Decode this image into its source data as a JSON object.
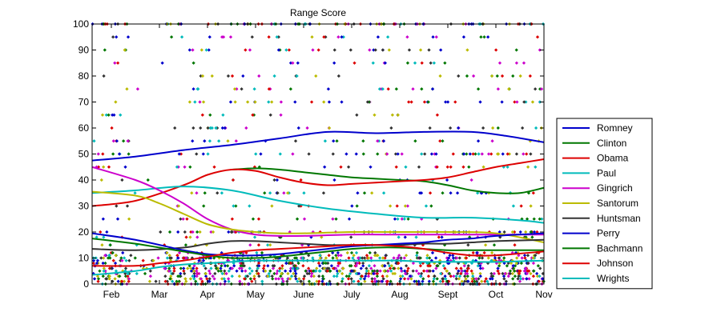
{
  "chart_data": {
    "type": "scatter",
    "title": "Range Score",
    "xlabel": "",
    "ylabel": "",
    "ylim": [
      0,
      100
    ],
    "yticks": [
      0,
      10,
      20,
      30,
      40,
      50,
      60,
      70,
      80,
      90,
      100
    ],
    "xlim": [
      0.6,
      10.0
    ],
    "xticks": [
      {
        "x": 1,
        "label": "Feb"
      },
      {
        "x": 2,
        "label": "Mar"
      },
      {
        "x": 3,
        "label": "Apr"
      },
      {
        "x": 4,
        "label": "May"
      },
      {
        "x": 5,
        "label": "June"
      },
      {
        "x": 6,
        "label": "July"
      },
      {
        "x": 7,
        "label": "Aug"
      },
      {
        "x": 8,
        "label": "Sept"
      },
      {
        "x": 9,
        "label": "Oct"
      },
      {
        "x": 10,
        "label": "Nov"
      }
    ],
    "grid": false,
    "legend_position": "right",
    "series": [
      {
        "name": "Romney",
        "color": "#0000cc",
        "x": [
          0.6,
          1.5,
          2.5,
          3.5,
          4.5,
          5.5,
          6.5,
          7.5,
          8.5,
          9.2,
          10.0
        ],
        "y": [
          47.5,
          49,
          51.5,
          53.5,
          56,
          58.5,
          58,
          58.5,
          58.5,
          57,
          54.5
        ]
      },
      {
        "name": "Clinton",
        "color": "#007700",
        "x": [
          3.5,
          4,
          4.5,
          5,
          5.5,
          6,
          6.5,
          7,
          7.5,
          8,
          8.5,
          9,
          9.5,
          10.0
        ],
        "y": [
          44,
          44.5,
          44,
          43,
          42,
          41,
          40.5,
          40,
          39.5,
          38,
          36,
          35,
          35,
          37
        ]
      },
      {
        "name": "Obama",
        "color": "#dd0000",
        "x": [
          0.6,
          1.5,
          2.5,
          3,
          3.5,
          4,
          4.5,
          5,
          5.5,
          6,
          6.5,
          7,
          7.5,
          8,
          8.5,
          9,
          9.5,
          10.0
        ],
        "y": [
          30,
          32,
          38,
          42,
          44,
          43.5,
          41,
          39,
          38,
          38.5,
          39,
          39.5,
          40,
          41,
          43,
          45,
          46.5,
          48
        ]
      },
      {
        "name": "Paul",
        "color": "#00bbbb",
        "x": [
          0.6,
          1.5,
          2.5,
          3.5,
          4.5,
          5.5,
          6.5,
          7.5,
          8.5,
          9.5,
          10.0
        ],
        "y": [
          35,
          36,
          37.5,
          36,
          32,
          29,
          27,
          25.5,
          25.5,
          24.5,
          23.5
        ]
      },
      {
        "name": "Gingrich",
        "color": "#cc00cc",
        "x": [
          0.6,
          1.5,
          2,
          2.5,
          3,
          3.5,
          4,
          4.5,
          5,
          6,
          7,
          8,
          9,
          10.0
        ],
        "y": [
          45,
          40,
          36,
          31,
          25,
          21,
          19,
          18.5,
          18.5,
          19,
          19,
          19,
          19,
          19
        ]
      },
      {
        "name": "Santorum",
        "color": "#bbbb00",
        "x": [
          0.6,
          1.5,
          2,
          2.5,
          3,
          3.5,
          4,
          4.5,
          5,
          6,
          7,
          8,
          9,
          10.0
        ],
        "y": [
          35.5,
          34,
          31,
          27,
          23,
          21,
          20,
          19.5,
          19.5,
          20,
          20,
          20,
          19.5,
          16
        ]
      },
      {
        "name": "Huntsman",
        "color": "#333333",
        "x": [
          0.6,
          1.5,
          2.5,
          3,
          3.5,
          4,
          4.5,
          5,
          5.5,
          6,
          6.5,
          7,
          7.5,
          8,
          8.5,
          9,
          10.0
        ],
        "y": [
          13.5,
          13,
          14,
          15.5,
          16.5,
          16.5,
          16,
          15.5,
          15,
          15,
          15,
          15,
          15.5,
          15.5,
          16,
          16.5,
          17
        ]
      },
      {
        "name": "Perry",
        "color": "#0000cc",
        "x": [
          0.6,
          1.5,
          2.5,
          3,
          3.5,
          4,
          4.5,
          5,
          5.5,
          6,
          6.5,
          7,
          7.5,
          8,
          8.5,
          9,
          10.0
        ],
        "y": [
          19.5,
          17,
          13,
          11.5,
          11,
          11,
          11.5,
          12.5,
          13.5,
          14.5,
          15,
          15.5,
          16,
          17,
          17.5,
          18.5,
          19.5
        ]
      },
      {
        "name": "Bachmann",
        "color": "#007700",
        "x": [
          0.6,
          1.5,
          2,
          2.5,
          3,
          3.5,
          4,
          4.5,
          5,
          5.5,
          6,
          6.5,
          7,
          7.5,
          8,
          8.5,
          9,
          10.0
        ],
        "y": [
          17.5,
          15.5,
          14,
          12.5,
          11,
          10,
          10,
          10.5,
          11.5,
          12.5,
          13.5,
          14,
          14,
          13.5,
          13,
          13,
          13,
          13
        ]
      },
      {
        "name": "Johnson",
        "color": "#dd0000",
        "x": [
          0.6,
          1.5,
          2,
          2.5,
          3,
          3.5,
          4,
          4.5,
          5,
          5.5,
          6,
          6.5,
          7,
          7.5,
          8,
          8.5,
          9,
          10.0
        ],
        "y": [
          7,
          7,
          8,
          9,
          10.5,
          12,
          13,
          13.5,
          14,
          14.5,
          15,
          15,
          14.5,
          13.5,
          12,
          11,
          11,
          12.5
        ]
      },
      {
        "name": "Wrights",
        "color": "#00bbbb",
        "x": [
          0.6,
          1.5,
          2,
          2.5,
          3,
          3.5,
          4,
          4.5,
          5,
          5.5,
          6,
          6.5,
          7,
          7.5,
          8,
          8.5,
          9,
          10.0
        ],
        "y": [
          3.5,
          5,
          6.5,
          7.5,
          8,
          8.5,
          9,
          9,
          9,
          9,
          9,
          9,
          9,
          8.5,
          8.5,
          8.5,
          8.5,
          9
        ]
      }
    ],
    "scatter_colors": [
      "#0000cc",
      "#007700",
      "#dd0000",
      "#00bbbb",
      "#cc00cc",
      "#bbbb00",
      "#333333"
    ]
  }
}
